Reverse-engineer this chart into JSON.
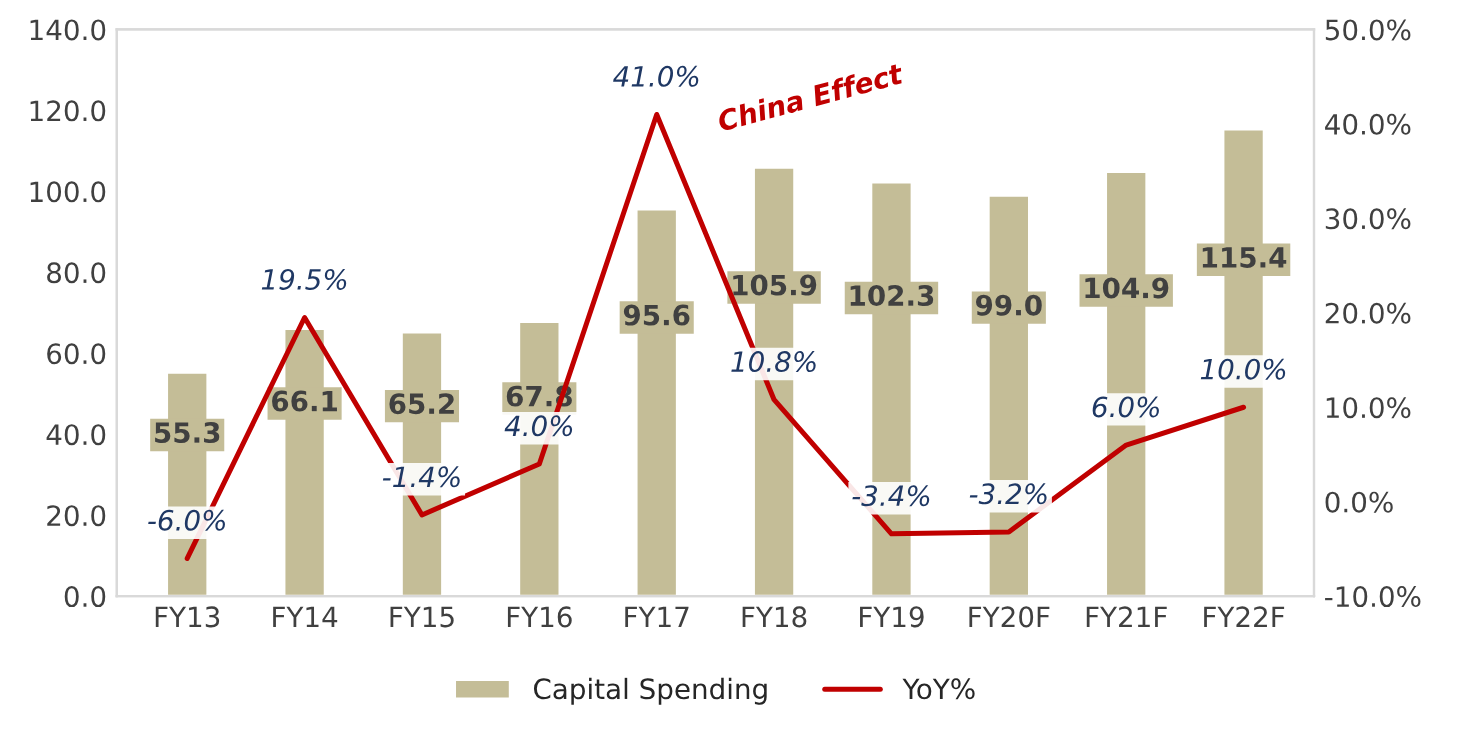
{
  "chart_data": {
    "type": "bar",
    "categories": [
      "FY13",
      "FY14",
      "FY15",
      "FY16",
      "FY17",
      "FY18",
      "FY19",
      "FY20F",
      "FY21F",
      "FY22F"
    ],
    "series": [
      {
        "name": "Capital Spending",
        "color": "#c4bd97",
        "values": [
          55.3,
          66.1,
          65.2,
          67.8,
          95.6,
          105.9,
          102.3,
          99.0,
          104.9,
          115.4
        ],
        "value_labels": [
          "55.3",
          "66.1",
          "65.2",
          "67.8",
          "95.6",
          "105.9",
          "102.3",
          "99.0",
          "104.9",
          "115.4"
        ]
      },
      {
        "name": "YoY%",
        "type": "line",
        "axis": "y2",
        "color": "#c00000",
        "values": [
          -6.0,
          19.5,
          -1.4,
          4.0,
          41.0,
          10.8,
          -3.4,
          -3.2,
          6.0,
          10.0
        ],
        "value_labels": [
          "-6.0%",
          "19.5%",
          "-1.4%",
          "4.0%",
          "41.0%",
          "10.8%",
          "-3.4%",
          "-3.2%",
          "6.0%",
          "10.0%"
        ]
      }
    ],
    "ylim": [
      0,
      140
    ],
    "yticks": [
      {
        "value": 0,
        "label": "0.0"
      },
      {
        "value": 20,
        "label": "20.0"
      },
      {
        "value": 40,
        "label": "40.0"
      },
      {
        "value": 60,
        "label": "60.0"
      },
      {
        "value": 80,
        "label": "80.0"
      },
      {
        "value": 100,
        "label": "100.0"
      },
      {
        "value": 120,
        "label": "120.0"
      },
      {
        "value": 140,
        "label": "140.0"
      }
    ],
    "y2lim": [
      -10,
      50
    ],
    "y2ticks": [
      {
        "value": -10,
        "label": "-10.0%"
      },
      {
        "value": 0,
        "label": "0.0%"
      },
      {
        "value": 10,
        "label": "10.0%"
      },
      {
        "value": 20,
        "label": "20.0%"
      },
      {
        "value": 30,
        "label": "30.0%"
      },
      {
        "value": 40,
        "label": "40.0%"
      },
      {
        "value": 50,
        "label": "50.0%"
      }
    ],
    "annotations": [
      "China Effect"
    ],
    "grid": false,
    "legend": "bottom",
    "marker": "none",
    "line_style": "solid"
  }
}
